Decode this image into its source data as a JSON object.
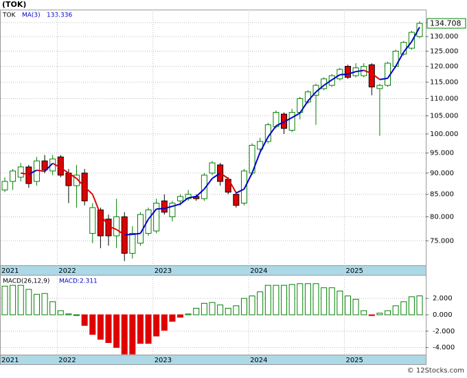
{
  "chart_data": {
    "type": "candlestick",
    "title": "(TOK)",
    "symbol": "TOK",
    "log_scale": true,
    "grid": true,
    "up_color": "#008000",
    "down_color": "#e00000",
    "categories": [
      "2021",
      null,
      null,
      null,
      null,
      null,
      null,
      "2022",
      null,
      null,
      null,
      null,
      null,
      null,
      null,
      null,
      null,
      null,
      null,
      "2023",
      null,
      null,
      null,
      null,
      null,
      null,
      null,
      null,
      null,
      null,
      null,
      "2024",
      null,
      null,
      null,
      null,
      null,
      null,
      null,
      null,
      null,
      null,
      null,
      "2025",
      null,
      null,
      null,
      null,
      null,
      null,
      null,
      null,
      null
    ],
    "open": [
      86.0,
      88.0,
      89.0,
      91.5,
      88.0,
      93.0,
      90.5,
      94.0,
      90.0,
      87.0,
      90.0,
      76.5,
      81.5,
      79.5,
      76.0,
      80.0,
      72.5,
      74.5,
      76.5,
      77.0,
      83.5,
      80.0,
      83.5,
      84.0,
      84.5,
      84.0,
      90.0,
      92.0,
      88.5,
      85.0,
      83.0,
      90.0,
      96.0,
      98.0,
      102.0,
      105.5,
      101.0,
      106.0,
      109.0,
      111.0,
      113.0,
      114.0,
      116.0,
      120.0,
      117.0,
      117.0,
      120.5,
      113.0,
      114.0,
      120.0,
      124.0,
      126.0,
      130.0
    ],
    "high": [
      89.0,
      91.0,
      92.5,
      92.0,
      94.0,
      94.5,
      94.5,
      94.5,
      91.0,
      92.0,
      91.0,
      83.0,
      82.0,
      80.5,
      84.0,
      81.0,
      78.0,
      81.0,
      82.0,
      84.0,
      85.0,
      83.5,
      85.0,
      86.0,
      85.0,
      90.0,
      93.0,
      92.5,
      89.0,
      85.5,
      91.0,
      97.5,
      99.0,
      103.0,
      106.5,
      106.0,
      107.0,
      110.5,
      112.5,
      114.5,
      116.5,
      117.5,
      119.5,
      120.5,
      121.0,
      121.0,
      121.0,
      114.5,
      121.5,
      125.5,
      128.5,
      132.0,
      135.5
    ],
    "low": [
      85.5,
      86.0,
      88.0,
      86.5,
      87.0,
      90.0,
      89.5,
      89.0,
      83.0,
      82.0,
      82.5,
      74.5,
      73.5,
      74.0,
      73.5,
      71.0,
      71.5,
      74.0,
      76.0,
      76.5,
      80.5,
      79.0,
      82.5,
      83.5,
      83.5,
      83.5,
      89.5,
      87.0,
      85.0,
      82.0,
      82.5,
      89.5,
      95.5,
      97.5,
      101.5,
      100.0,
      100.5,
      104.0,
      108.5,
      102.5,
      112.5,
      113.5,
      115.5,
      116.0,
      116.5,
      116.5,
      111.0,
      99.5,
      113.5,
      119.5,
      123.5,
      125.5,
      129.5
    ],
    "close": [
      88.0,
      90.5,
      91.5,
      87.5,
      93.0,
      90.8,
      93.5,
      89.5,
      87.0,
      89.5,
      83.5,
      82.0,
      76.0,
      76.0,
      80.0,
      72.5,
      76.5,
      80.5,
      81.5,
      83.0,
      81.0,
      83.0,
      84.5,
      85.0,
      84.0,
      89.5,
      92.5,
      88.0,
      85.5,
      82.5,
      90.5,
      97.0,
      98.0,
      102.5,
      106.0,
      101.5,
      106.0,
      110.0,
      112.0,
      114.0,
      116.0,
      117.0,
      119.0,
      116.5,
      119.5,
      120.0,
      113.5,
      114.0,
      121.0,
      125.0,
      128.0,
      131.5,
      134.708
    ],
    "ylim": [
      70.2,
      139.8
    ],
    "yticks": [
      {
        "value": 75,
        "label": "75.000"
      },
      {
        "value": 80,
        "label": "80.000"
      },
      {
        "value": 85,
        "label": "85.000"
      },
      {
        "value": 90,
        "label": "90.000"
      },
      {
        "value": 95,
        "label": "95.000"
      },
      {
        "value": 100,
        "label": "100.000"
      },
      {
        "value": 105,
        "label": "105.000"
      },
      {
        "value": 110,
        "label": "110.000"
      },
      {
        "value": 115,
        "label": "115.000"
      },
      {
        "value": 120,
        "label": "120.000"
      },
      {
        "value": 125,
        "label": "125.000"
      },
      {
        "value": 130,
        "label": "130.000"
      },
      {
        "value": 135,
        "label": "135.000"
      }
    ],
    "ma": {
      "name": "MA(3)",
      "up_color": "#0000cc",
      "down_color": "#e00000",
      "values": [
        null,
        null,
        90.0,
        89.7,
        90.7,
        90.4,
        92.4,
        91.3,
        90.0,
        88.7,
        86.7,
        85.0,
        80.5,
        78.0,
        77.3,
        76.2,
        76.3,
        76.5,
        79.5,
        81.7,
        81.8,
        82.3,
        82.8,
        84.2,
        84.5,
        86.2,
        88.7,
        90.0,
        88.7,
        85.3,
        86.2,
        90.0,
        95.2,
        99.2,
        102.2,
        103.3,
        104.5,
        105.8,
        109.3,
        112.0,
        114.0,
        115.7,
        117.3,
        117.5,
        118.3,
        118.7,
        117.7,
        115.8,
        116.2,
        120.0,
        124.7,
        128.2,
        133.336
      ]
    },
    "macd": {
      "title": "MACD(26,12,9)",
      "value_label": "MACD:2.311",
      "values": [
        3.5,
        3.6,
        3.6,
        3.1,
        2.5,
        2.6,
        1.6,
        0.5,
        0.1,
        0.0,
        -1.3,
        -2.4,
        -3.0,
        -3.4,
        -4.0,
        -4.8,
        -4.8,
        -3.5,
        -3.5,
        -2.6,
        -1.9,
        -0.8,
        -0.3,
        0.1,
        0.8,
        1.4,
        1.5,
        1.2,
        0.8,
        1.1,
        2.0,
        2.3,
        2.8,
        3.6,
        3.6,
        3.6,
        3.7,
        3.8,
        3.8,
        3.8,
        3.3,
        3.3,
        2.9,
        2.3,
        1.9,
        0.5,
        -0.1,
        0.2,
        0.5,
        1.1,
        1.6,
        2.2,
        2.311
      ],
      "ylim": [
        -4.87,
        4.87
      ],
      "yticks": [
        {
          "value": 2,
          "label": "2.000"
        },
        {
          "value": 0,
          "label": "0.000"
        },
        {
          "value": -2,
          "label": "-2.000"
        },
        {
          "value": -4,
          "label": "-4.000"
        }
      ]
    }
  },
  "watermark": "© 12Stocks.com"
}
